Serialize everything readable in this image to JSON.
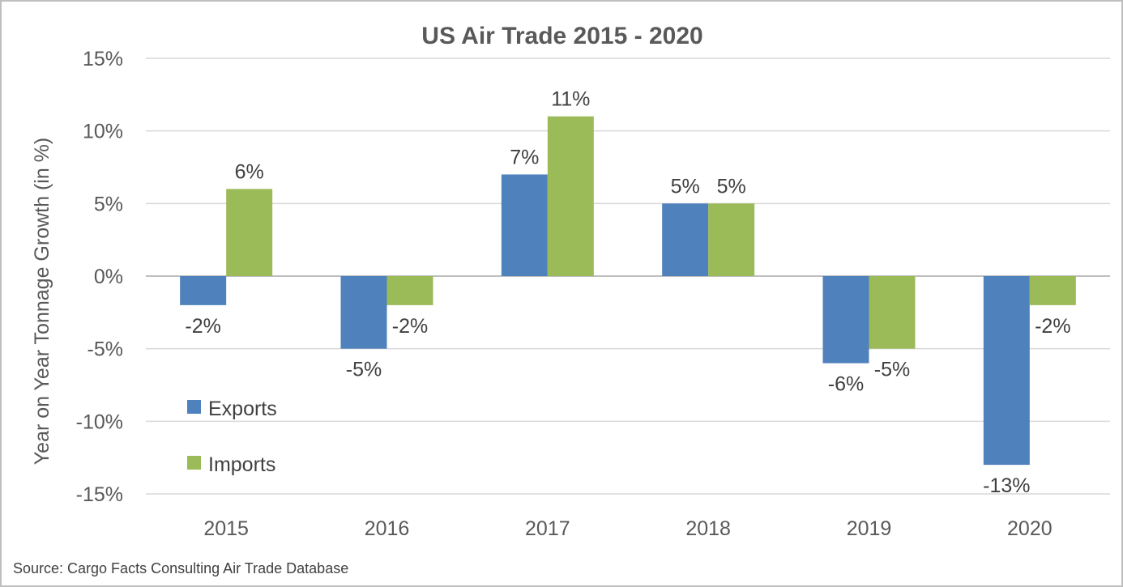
{
  "chart_data": {
    "type": "bar",
    "title": "US Air Trade 2015 - 2020",
    "ylabel": "Year on Year Tonnage Growth (in %)",
    "xlabel": "",
    "categories": [
      "2015",
      "2016",
      "2017",
      "2018",
      "2019",
      "2020"
    ],
    "series": [
      {
        "name": "Exports",
        "color": "#4f81bd",
        "values": [
          -2,
          -5,
          7,
          5,
          -6,
          -13
        ],
        "labels": [
          "-2%",
          "-5%",
          "7%",
          "5%",
          "-6%",
          "-13%"
        ]
      },
      {
        "name": "Imports",
        "color": "#9bbb59",
        "values": [
          6,
          -2,
          11,
          5,
          -5,
          -2
        ],
        "labels": [
          "6%",
          "-2%",
          "11%",
          "5%",
          "-5%",
          "-2%"
        ]
      }
    ],
    "ylim": [
      -15,
      15
    ],
    "yticks": [
      15,
      10,
      5,
      0,
      -5,
      -10,
      -15
    ],
    "ytick_labels": [
      "15%",
      "10%",
      "5%",
      "0%",
      "-5%",
      "-10%",
      "-15%"
    ],
    "grid": true,
    "legend": "bottom-left inside plot"
  },
  "source": "Source: Cargo Facts Consulting Air Trade Database"
}
